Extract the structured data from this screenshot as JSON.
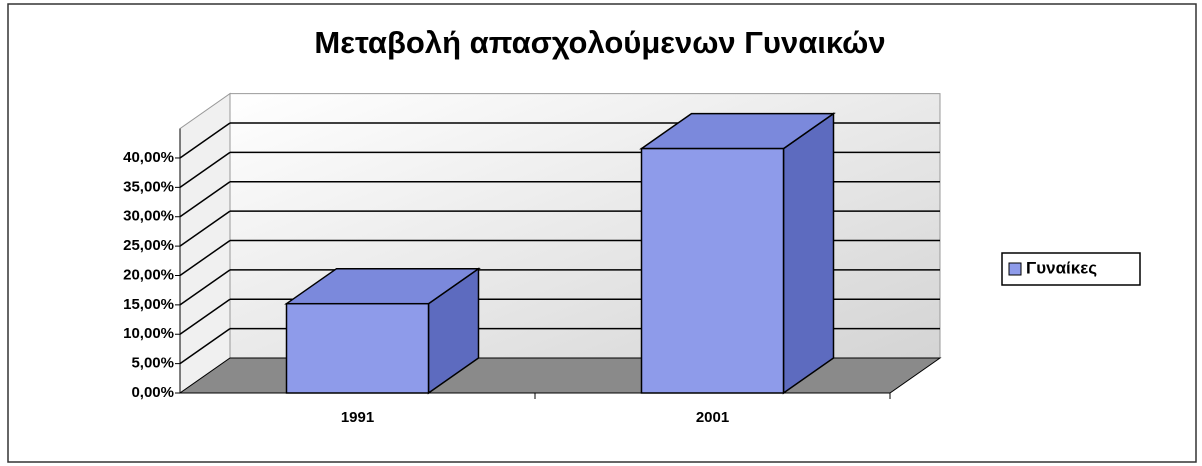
{
  "chart_data": {
    "type": "bar3d",
    "title": "Μεταβολή απασχολούμενων Γυναικών",
    "categories": [
      "1991",
      "2001"
    ],
    "series": [
      {
        "name": "Γυναίκες",
        "color": "#8e9bea",
        "values": [
          15.2,
          41.6
        ]
      }
    ],
    "ylim": [
      0,
      45
    ],
    "yticks": [
      {
        "value": 0,
        "label": "0,00%"
      },
      {
        "value": 5,
        "label": "5,00%"
      },
      {
        "value": 10,
        "label": "10,00%"
      },
      {
        "value": 15,
        "label": "15,00%"
      },
      {
        "value": 20,
        "label": "20,00%"
      },
      {
        "value": 25,
        "label": "25,00%"
      },
      {
        "value": 30,
        "label": "30,00%"
      },
      {
        "value": 35,
        "label": "35,00%"
      },
      {
        "value": 40,
        "label": "40,00%"
      }
    ],
    "grid": true,
    "legend": "right"
  }
}
